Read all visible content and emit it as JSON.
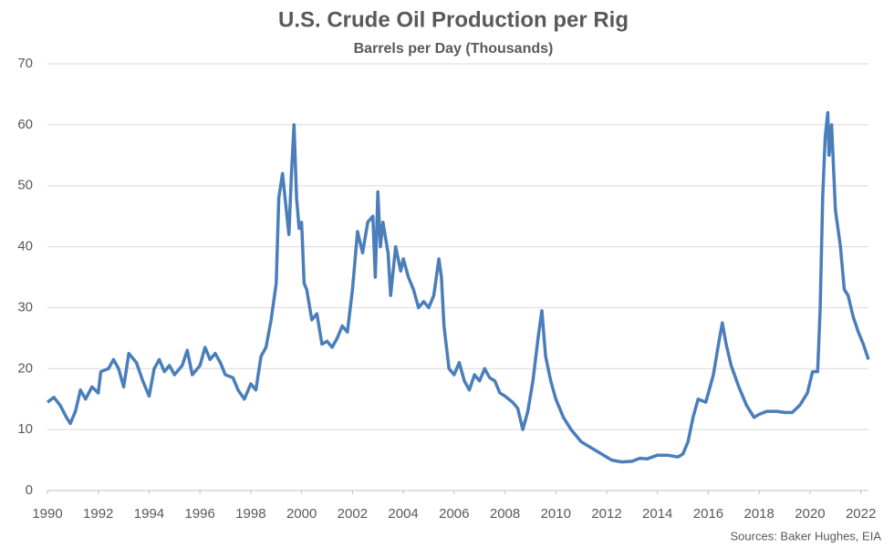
{
  "chart_data": {
    "type": "line",
    "title": "U.S. Crude Oil Production per Rig",
    "subtitle": "Barrels per Day (Thousands)",
    "source": "Sources: Baker Hughes, EIA",
    "x": [
      1990.0,
      1990.25,
      1990.5,
      1990.75,
      1990.9,
      1991.1,
      1991.3,
      1991.5,
      1991.75,
      1992.0,
      1992.1,
      1992.4,
      1992.6,
      1992.8,
      1993.0,
      1993.2,
      1993.5,
      1993.75,
      1994.0,
      1994.2,
      1994.4,
      1994.6,
      1994.8,
      1995.0,
      1995.3,
      1995.5,
      1995.7,
      1996.0,
      1996.2,
      1996.4,
      1996.6,
      1996.8,
      1997.0,
      1997.3,
      1997.5,
      1997.75,
      1998.0,
      1998.2,
      1998.4,
      1998.6,
      1998.8,
      1999.0,
      1999.1,
      1999.25,
      1999.4,
      1999.5,
      1999.6,
      1999.7,
      1999.8,
      1999.9,
      2000.0,
      2000.1,
      2000.2,
      2000.4,
      2000.6,
      2000.8,
      2001.0,
      2001.2,
      2001.4,
      2001.6,
      2001.8,
      2002.0,
      2002.2,
      2002.4,
      2002.6,
      2002.8,
      2002.9,
      2003.0,
      2003.1,
      2003.2,
      2003.4,
      2003.5,
      2003.7,
      2003.9,
      2004.0,
      2004.2,
      2004.4,
      2004.6,
      2004.8,
      2005.0,
      2005.2,
      2005.4,
      2005.5,
      2005.6,
      2005.8,
      2006.0,
      2006.2,
      2006.4,
      2006.6,
      2006.8,
      2007.0,
      2007.2,
      2007.4,
      2007.6,
      2007.8,
      2008.0,
      2008.3,
      2008.5,
      2008.7,
      2008.9,
      2009.1,
      2009.3,
      2009.45,
      2009.6,
      2009.8,
      2010.0,
      2010.3,
      2010.6,
      2011.0,
      2011.4,
      2011.8,
      2012.2,
      2012.6,
      2013.0,
      2013.3,
      2013.6,
      2014.0,
      2014.4,
      2014.8,
      2015.0,
      2015.2,
      2015.4,
      2015.6,
      2015.9,
      2016.2,
      2016.4,
      2016.55,
      2016.7,
      2016.9,
      2017.2,
      2017.5,
      2017.8,
      2018.0,
      2018.3,
      2018.7,
      2019.0,
      2019.3,
      2019.6,
      2019.9,
      2020.1,
      2020.3,
      2020.4,
      2020.5,
      2020.6,
      2020.7,
      2020.75,
      2020.85,
      2021.0,
      2021.2,
      2021.35,
      2021.5,
      2021.7,
      2021.9,
      2022.1,
      2022.3
    ],
    "series": [
      {
        "color": "#4a7ebb",
        "values": [
          14.5,
          15.3,
          14,
          12,
          11,
          13,
          16.5,
          15,
          17,
          16,
          19.5,
          20,
          21.5,
          20,
          17,
          22.5,
          21,
          18,
          15.5,
          20,
          21.5,
          19.5,
          20.5,
          19,
          20.5,
          23,
          19,
          20.5,
          23.5,
          21.5,
          22.5,
          21,
          19,
          18.5,
          16.5,
          15,
          17.5,
          16.5,
          22,
          23.5,
          28,
          34,
          48,
          52,
          46,
          42,
          52,
          60,
          48,
          43,
          44,
          34,
          33,
          28,
          29,
          24,
          24.5,
          23.5,
          25,
          27,
          26,
          33,
          42.5,
          39,
          44,
          45,
          35,
          49,
          40,
          44,
          39,
          32,
          40,
          36,
          38,
          35,
          33,
          30,
          31,
          30,
          32,
          38,
          35,
          27,
          20,
          19,
          21,
          18,
          16.5,
          19,
          18,
          20,
          18.5,
          18,
          16,
          15.5,
          14.5,
          13.5,
          10,
          13,
          18,
          25,
          29.5,
          22,
          18,
          15,
          12,
          10,
          8,
          7,
          6,
          5,
          4.7,
          4.8,
          5.3,
          5.2,
          5.8,
          5.8,
          5.5,
          6,
          8,
          12,
          15,
          14.5,
          19,
          24,
          27.5,
          24,
          20.5,
          17,
          14,
          12,
          12.5,
          13,
          13,
          12.8,
          12.8,
          14,
          16,
          19.5,
          19.5,
          30,
          48,
          58,
          62,
          55,
          60,
          46,
          40,
          33,
          32,
          28.5,
          26,
          24,
          21.5
        ]
      }
    ],
    "xlim": [
      1990,
      2022.3
    ],
    "xticks": [
      1990,
      1992,
      1994,
      1996,
      1998,
      2000,
      2002,
      2004,
      2006,
      2008,
      2010,
      2012,
      2014,
      2016,
      2018,
      2020,
      2022
    ],
    "ylim": [
      0,
      70
    ],
    "yticks": [
      0,
      10,
      20,
      30,
      40,
      50,
      60,
      70
    ],
    "grid": true
  }
}
